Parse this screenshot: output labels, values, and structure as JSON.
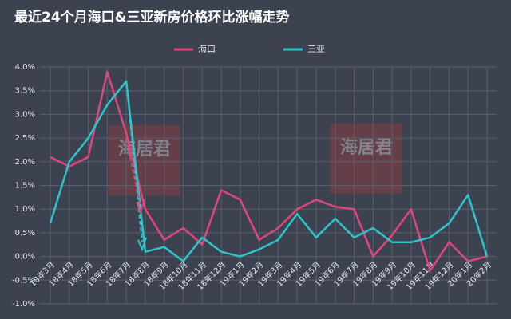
{
  "chart_data": {
    "type": "line",
    "title": "最近24个月海口&三亚新房价格环比涨幅走势",
    "watermark": "海居君",
    "categories": [
      "18年3月",
      "18年4月",
      "18年5月",
      "18年6月",
      "18年7月",
      "18年8月",
      "18年9月",
      "18年10月",
      "18年11月",
      "18年12月",
      "19年1月",
      "19年2月",
      "19年3月",
      "19年4月",
      "19年5月",
      "19年6月",
      "19年7月",
      "19年8月",
      "19年9月",
      "19年10月",
      "19年11月",
      "19年12月",
      "20年1月",
      "20年2月"
    ],
    "series": [
      {
        "name": "海口",
        "color": "#e0457b",
        "values": [
          2.1,
          1.9,
          2.1,
          3.9,
          2.6,
          1.0,
          0.35,
          0.6,
          0.25,
          1.4,
          1.2,
          0.35,
          0.6,
          1.0,
          1.2,
          1.05,
          1.0,
          0.0,
          0.45,
          1.0,
          -0.3,
          0.3,
          -0.1,
          0.0
        ]
      },
      {
        "name": "三亚",
        "color": "#2ec4cc",
        "values": [
          0.7,
          2.0,
          2.5,
          3.2,
          3.7,
          0.1,
          0.2,
          -0.1,
          0.4,
          0.1,
          0.0,
          0.15,
          0.35,
          0.9,
          0.4,
          0.8,
          0.4,
          0.6,
          0.3,
          0.3,
          0.4,
          0.7,
          1.3,
          0.0
        ]
      }
    ],
    "ylim": [
      -1.0,
      4.0
    ],
    "yticks": [
      {
        "value": -1.0,
        "label": "-1.0%"
      },
      {
        "value": -0.5,
        "label": "-0.5%"
      },
      {
        "value": 0.0,
        "label": "0.0%"
      },
      {
        "value": 0.5,
        "label": "0.5%"
      },
      {
        "value": 1.0,
        "label": "1.0%"
      },
      {
        "value": 1.5,
        "label": "1.5%"
      },
      {
        "value": 2.0,
        "label": "2.0%"
      },
      {
        "value": 2.5,
        "label": "2.5%"
      },
      {
        "value": 3.0,
        "label": "3.0%"
      },
      {
        "value": 3.5,
        "label": "3.5%"
      },
      {
        "value": 4.0,
        "label": "4.0%"
      }
    ],
    "grid": true
  }
}
